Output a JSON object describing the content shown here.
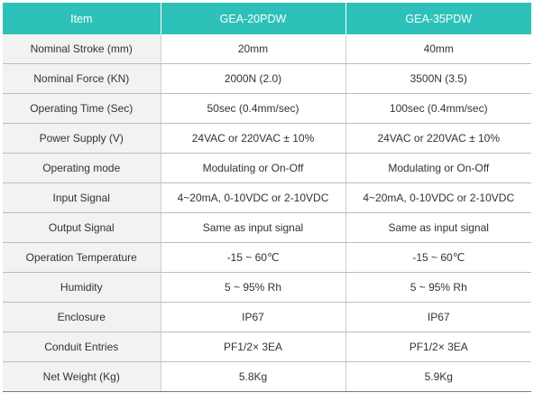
{
  "table": {
    "headers": [
      "Item",
      "GEA-20PDW",
      "GEA-35PDW"
    ],
    "rows": [
      [
        "Nominal Stroke (mm)",
        "20mm",
        "40mm"
      ],
      [
        "Nominal Force (KN)",
        "2000N (2.0)",
        "3500N (3.5)"
      ],
      [
        "Operating Time (Sec)",
        "50sec (0.4mm/sec)",
        "100sec (0.4mm/sec)"
      ],
      [
        "Power Supply (V)",
        "24VAC or 220VAC ± 10%",
        "24VAC or 220VAC ± 10%"
      ],
      [
        "Operating mode",
        "Modulating or On-Off",
        "Modulating or On-Off"
      ],
      [
        "Input Signal",
        "4~20mA, 0-10VDC or 2-10VDC",
        "4~20mA, 0-10VDC or 2-10VDC"
      ],
      [
        "Output Signal",
        "Same as input signal",
        "Same as input signal"
      ],
      [
        "Operation Temperature",
        "-15 ~ 60℃",
        "-15 ~ 60℃"
      ],
      [
        "Humidity",
        "5 ~ 95% Rh",
        "5 ~ 95% Rh"
      ],
      [
        "Enclosure",
        "IP67",
        "IP67"
      ],
      [
        "Conduit Entries",
        "PF1/2× 3EA",
        "PF1/2× 3EA"
      ],
      [
        "Net Weight (Kg)",
        "5.8Kg",
        "5.9Kg"
      ]
    ]
  },
  "colors": {
    "header_bg": "#2ec1ba",
    "header_text": "#ffffff",
    "label_bg": "#f2f2f2"
  }
}
